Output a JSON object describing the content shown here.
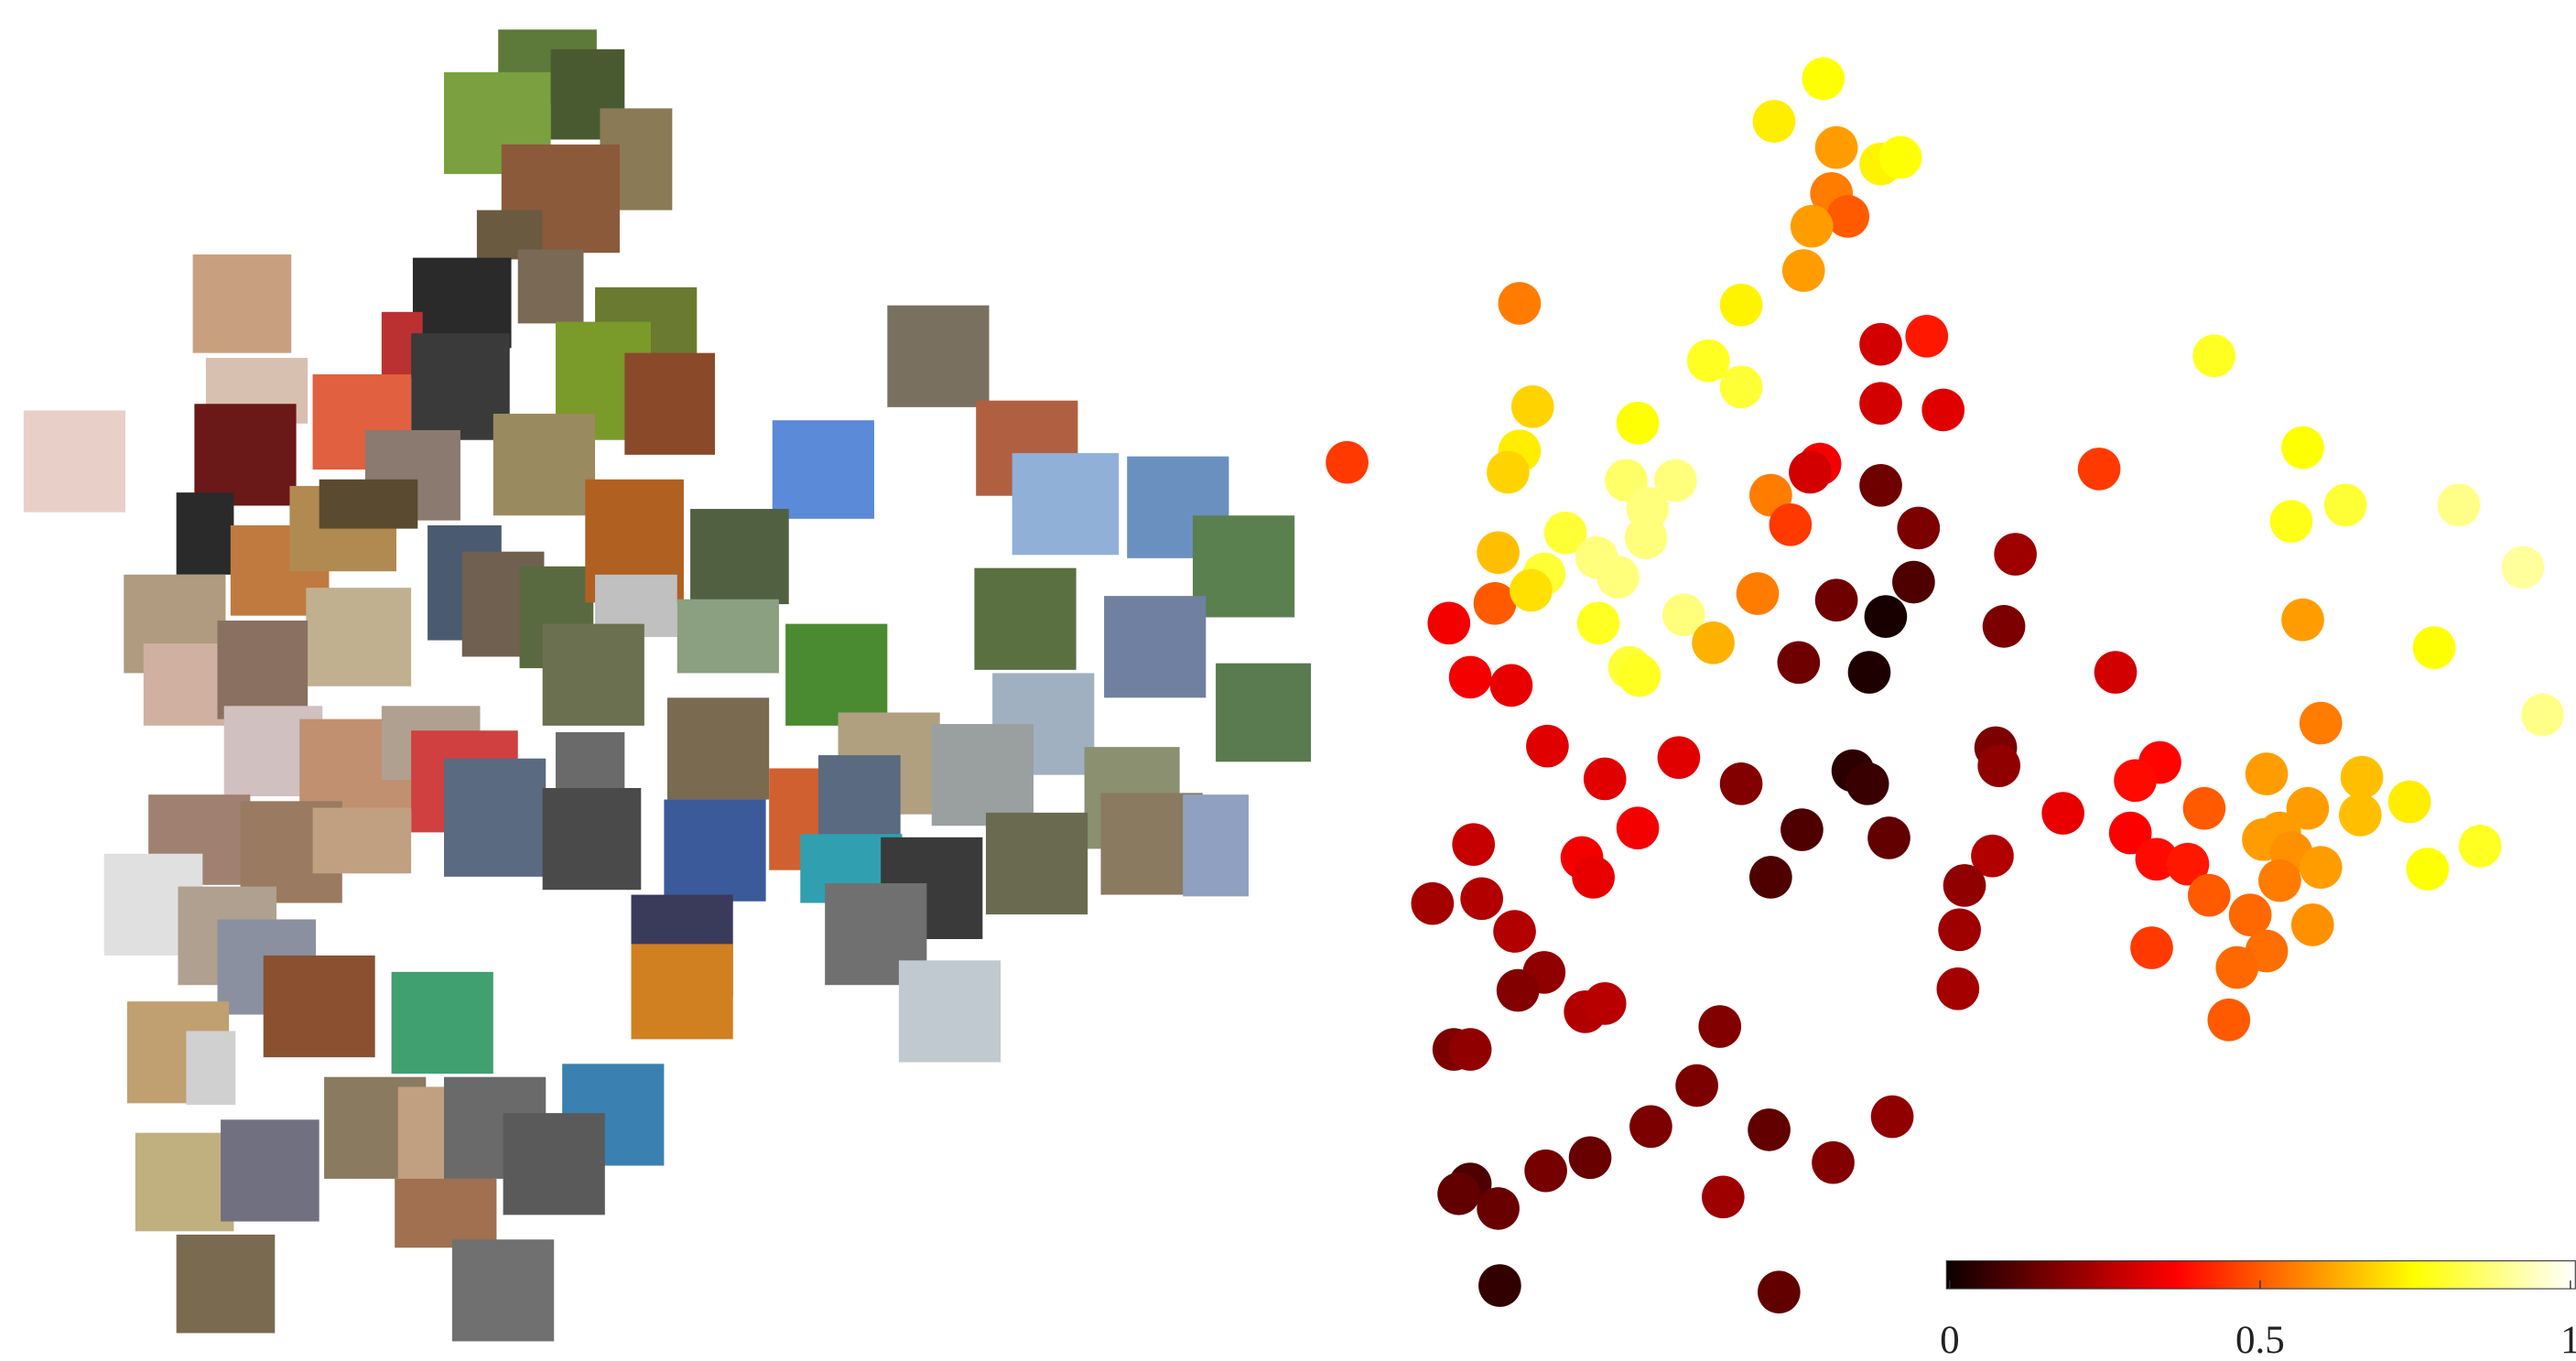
{
  "chart_data": {
    "type": "scatter",
    "colormap": "hot",
    "x": [
      1110,
      1080,
      1118,
      1145,
      1157,
      1115,
      1125,
      1103,
      1098,
      925,
      1060,
      1145,
      1173,
      1040,
      1060,
      1348,
      933,
      1145,
      1183,
      997,
      925,
      918,
      820,
      1402,
      1278,
      1108,
      1102,
      1145,
      990,
      1020,
      1003,
      1078,
      1168,
      1395,
      1428,
      1497,
      953,
      1002,
      1090,
      1227,
      972,
      912,
      1536,
      1165,
      940,
      985,
      1118,
      1148,
      882,
      910,
      1070,
      932,
      973,
      1025,
      1220,
      1402,
      1043,
      1482,
      1095,
      992,
      998,
      1138,
      895,
      920,
      1288,
      1548,
      942,
      1413,
      1215,
      1022,
      1128,
      1137,
      1060,
      977,
      1217,
      1315,
      1300,
      1438,
      1380,
      1256,
      1467,
      1342,
      1405,
      1437,
      1097,
      1150,
      997,
      897,
      1297,
      1378,
      1388,
      1313,
      1332,
      1395,
      1413,
      1478,
      1510,
      963,
      970,
      1213,
      1078,
      1196,
      1388,
      1345,
      872,
      902,
      1370,
      1408,
      922,
      1193,
      1310,
      1380,
      1362,
      940,
      924,
      1192,
      965,
      977,
      1357,
      1047,
      885,
      895,
      1033,
      1005,
      1077,
      1152,
      968,
      941,
      1116,
      895,
      888,
      912,
      1049,
      913,
      1083
    ],
    "y": [
      48,
      74,
      90,
      100,
      96,
      118,
      132,
      138,
      165,
      185,
      186,
      210,
      205,
      220,
      236,
      217,
      248,
      246,
      250,
      258,
      275,
      288,
      282,
      273,
      286,
      283,
      288,
      296,
      293,
      293,
      310,
      302,
      322,
      318,
      308,
      308,
      325,
      328,
      320,
      338,
      340,
      337,
      346,
      355,
      350,
      352,
      366,
      376,
      380,
      368,
      362,
      360,
      380,
      375,
      382,
      378,
      392,
      395,
      404,
      407,
      412,
      410,
      413,
      418,
      410,
      436,
      455,
      441,
      456,
      462,
      470,
      478,
      478,
      475,
      467,
      465,
      476,
      474,
      472,
      496,
      489,
      493,
      493,
      497,
      506,
      511,
      505,
      515,
      508,
      512,
      508,
      524,
      527,
      520,
      529,
      530,
      516,
      523,
      535,
      522,
      535,
      540,
      537,
      546,
      551,
      548,
      558,
      564,
      568,
      567,
      578,
      580,
      590,
      593,
      604,
      603,
      617,
      612,
      622,
      626,
      640,
      640,
      662,
      687,
      689,
      681,
      706,
      714,
      709,
      722,
      728,
      737,
      730,
      784,
      788
    ],
    "values": [
      0.75,
      0.72,
      0.6,
      0.73,
      0.75,
      0.55,
      0.5,
      0.6,
      0.6,
      0.55,
      0.73,
      0.3,
      0.4,
      0.78,
      0.8,
      0.78,
      0.68,
      0.3,
      0.32,
      0.75,
      0.72,
      0.68,
      0.45,
      0.75,
      0.45,
      0.35,
      0.3,
      0.15,
      0.85,
      0.87,
      0.87,
      0.55,
      0.17,
      0.77,
      0.8,
      0.88,
      0.8,
      0.87,
      0.45,
      0.22,
      0.87,
      0.65,
      0.9,
      0.1,
      0.8,
      0.87,
      0.15,
      0.02,
      0.35,
      0.5,
      0.55,
      0.7,
      0.78,
      0.87,
      0.17,
      0.6,
      0.63,
      0.75,
      0.15,
      0.8,
      0.78,
      0.03,
      0.35,
      0.33,
      0.3,
      0.88,
      0.32,
      0.55,
      0.17,
      0.32,
      0.05,
      0.07,
      0.18,
      0.32,
      0.2,
      0.37,
      0.38,
      0.65,
      0.6,
      0.33,
      0.72,
      0.5,
      0.6,
      0.65,
      0.1,
      0.13,
      0.35,
      0.28,
      0.36,
      0.6,
      0.6,
      0.38,
      0.4,
      0.58,
      0.6,
      0.75,
      0.78,
      0.35,
      0.33,
      0.25,
      0.1,
      0.2,
      0.55,
      0.5,
      0.23,
      0.25,
      0.52,
      0.58,
      0.25,
      0.22,
      0.45,
      0.53,
      0.52,
      0.2,
      0.18,
      0.23,
      0.25,
      0.26,
      0.5,
      0.18,
      0.17,
      0.2,
      0.17,
      0.17,
      0.13,
      0.2,
      0.14,
      0.16,
      0.18,
      0.1,
      0.13,
      0.14,
      0.22,
      0.06,
      0.13
    ],
    "xlim": [
      800,
      1568
    ],
    "ylim": [
      830,
      0
    ],
    "clim": [
      0,
      1
    ],
    "colorbar_ticks": [
      0,
      0.5,
      1
    ]
  }
}
